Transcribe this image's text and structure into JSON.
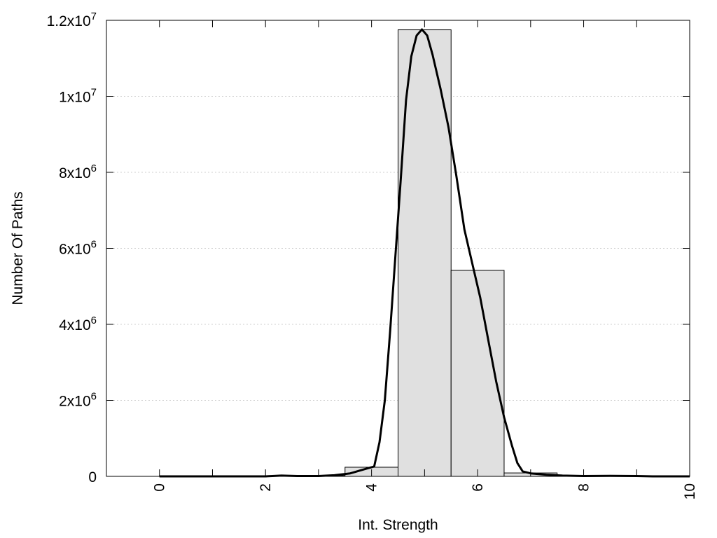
{
  "chart_data": {
    "type": "bar",
    "xlabel": "Int. Strength",
    "ylabel": "Number Of Paths",
    "xlim": [
      -1,
      10
    ],
    "ylim": [
      0,
      12000000
    ],
    "grid": "horizontal dotted",
    "xticks": [
      {
        "value": 0,
        "label": "0"
      },
      {
        "value": 2,
        "label": "2"
      },
      {
        "value": 4,
        "label": "4"
      },
      {
        "value": 6,
        "label": "6"
      },
      {
        "value": 8,
        "label": "8"
      },
      {
        "value": 10,
        "label": "10"
      }
    ],
    "yticks": [
      {
        "value": 0,
        "base": "0",
        "exp": ""
      },
      {
        "value": 2000000,
        "base": "2x10",
        "exp": "6"
      },
      {
        "value": 4000000,
        "base": "4x10",
        "exp": "6"
      },
      {
        "value": 6000000,
        "base": "6x10",
        "exp": "6"
      },
      {
        "value": 8000000,
        "base": "8x10",
        "exp": "6"
      },
      {
        "value": 10000000,
        "base": "1x10",
        "exp": "7"
      },
      {
        "value": 12000000,
        "base": "1.2x10",
        "exp": "7"
      }
    ],
    "bars": [
      {
        "center": 0,
        "value": 0
      },
      {
        "center": 1,
        "value": 0
      },
      {
        "center": 2,
        "value": 0
      },
      {
        "center": 3,
        "value": 20000
      },
      {
        "center": 4,
        "value": 240000
      },
      {
        "center": 5,
        "value": 11750000
      },
      {
        "center": 6,
        "value": 5420000
      },
      {
        "center": 7,
        "value": 90000
      },
      {
        "center": 8,
        "value": 10000
      },
      {
        "center": 9,
        "value": 0
      }
    ],
    "bar_width": 1,
    "bar_color": "#e0e0e0",
    "curve": {
      "color": "#000000",
      "points": [
        [
          0,
          0
        ],
        [
          1,
          0
        ],
        [
          2,
          0
        ],
        [
          2.3,
          20000
        ],
        [
          2.6,
          10000
        ],
        [
          3,
          10000
        ],
        [
          3.3,
          30000
        ],
        [
          3.6,
          80000
        ],
        [
          3.9,
          200000
        ],
        [
          4.05,
          260000
        ],
        [
          4.15,
          900000
        ],
        [
          4.25,
          2000000
        ],
        [
          4.35,
          3800000
        ],
        [
          4.45,
          5800000
        ],
        [
          4.55,
          7800000
        ],
        [
          4.65,
          9900000
        ],
        [
          4.75,
          11050000
        ],
        [
          4.85,
          11600000
        ],
        [
          4.95,
          11760000
        ],
        [
          5.05,
          11600000
        ],
        [
          5.15,
          11100000
        ],
        [
          5.3,
          10200000
        ],
        [
          5.45,
          9200000
        ],
        [
          5.6,
          7900000
        ],
        [
          5.75,
          6500000
        ],
        [
          5.9,
          5600000
        ],
        [
          6.05,
          4700000
        ],
        [
          6.2,
          3600000
        ],
        [
          6.35,
          2500000
        ],
        [
          6.5,
          1550000
        ],
        [
          6.65,
          800000
        ],
        [
          6.75,
          350000
        ],
        [
          6.85,
          130000
        ],
        [
          7.0,
          80000
        ],
        [
          7.3,
          40000
        ],
        [
          7.6,
          20000
        ],
        [
          8.0,
          10000
        ],
        [
          8.5,
          15000
        ],
        [
          9.0,
          10000
        ],
        [
          9.3,
          0
        ],
        [
          10,
          0
        ]
      ]
    }
  }
}
